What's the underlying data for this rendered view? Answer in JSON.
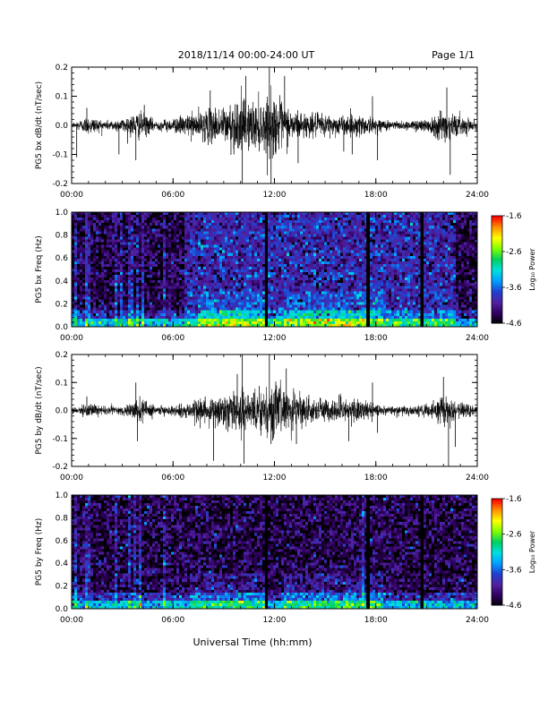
{
  "header": {
    "title": "2018/11/14  00:00-24:00 UT",
    "page": "Page 1/1"
  },
  "footer": {
    "xlabel": "Universal Time (hh:mm)"
  },
  "colorbar": {
    "label": "Log₁₀ Power",
    "ticks": [
      "-1.6",
      "-2.6",
      "-3.6",
      "-4.6"
    ],
    "range": [
      -4.6,
      -1.6
    ],
    "colors": [
      "#000000",
      "#300060",
      "#5020a0",
      "#2040d0",
      "#00a0ff",
      "#00e0e0",
      "#00d060",
      "#80ff00",
      "#ffff00",
      "#ff9000",
      "#ff0000"
    ]
  },
  "chart_data": [
    {
      "type": "line",
      "ylabel": "PG5 bx dB/dt (nT/sec)",
      "xlim": [
        0,
        24
      ],
      "ylim": [
        -0.2,
        0.2
      ],
      "x_ticks": [
        "00:00",
        "06:00",
        "12:00",
        "18:00",
        "24:00"
      ],
      "y_ticks": [
        "0.2",
        "0.1",
        "0.0",
        "-0.1",
        "-0.2"
      ],
      "envelope_hours": [
        0,
        1,
        2,
        3,
        4,
        5,
        6,
        7,
        8,
        9,
        10,
        11,
        12,
        13,
        14,
        15,
        16,
        17,
        18,
        19,
        20,
        21,
        22,
        23,
        24
      ],
      "envelope_amplitude": [
        0.01,
        0.04,
        0.02,
        0.03,
        0.06,
        0.02,
        0.03,
        0.05,
        0.07,
        0.08,
        0.12,
        0.1,
        0.13,
        0.07,
        0.05,
        0.05,
        0.04,
        0.05,
        0.03,
        0.02,
        0.02,
        0.03,
        0.07,
        0.04,
        0.02
      ],
      "spikes": [
        {
          "x": 0.3,
          "y": -0.11
        },
        {
          "x": 0.9,
          "y": 0.06
        },
        {
          "x": 2.8,
          "y": -0.1
        },
        {
          "x": 3.8,
          "y": -0.12
        },
        {
          "x": 4.3,
          "y": 0.07
        },
        {
          "x": 8.2,
          "y": 0.12
        },
        {
          "x": 9.6,
          "y": -0.1
        },
        {
          "x": 10.1,
          "y": -0.2
        },
        {
          "x": 10.3,
          "y": 0.17
        },
        {
          "x": 11.7,
          "y": 0.2
        },
        {
          "x": 11.8,
          "y": -0.21
        },
        {
          "x": 12.6,
          "y": 0.17
        },
        {
          "x": 13.4,
          "y": -0.13
        },
        {
          "x": 16.1,
          "y": -0.09
        },
        {
          "x": 16.6,
          "y": -0.1
        },
        {
          "x": 17.8,
          "y": 0.1
        },
        {
          "x": 18.1,
          "y": -0.12
        },
        {
          "x": 22.2,
          "y": 0.13
        },
        {
          "x": 22.4,
          "y": -0.17
        }
      ]
    },
    {
      "type": "heatmap",
      "ylabel": "PG5 bx Freq (Hz)",
      "xlim": [
        0,
        24
      ],
      "ylim": [
        0,
        1
      ],
      "x_ticks": [
        "00:00",
        "06:00",
        "12:00",
        "18:00",
        "24:00"
      ],
      "y_ticks": [
        "1.0",
        "0.8",
        "0.6",
        "0.4",
        "0.2",
        "0.0"
      ],
      "z_units": "Log₁₀ Power",
      "zlim": [
        -4.6,
        -1.6
      ],
      "quiet_background_hours": [
        [
          0,
          6.7
        ],
        [
          22.7,
          24
        ]
      ],
      "bright_background_hours": [
        [
          6.7,
          22.7
        ]
      ],
      "data_gaps_hours": [
        11.5,
        17.5,
        20.7
      ],
      "vertical_bright_streaks_hours": [
        0.3,
        0.9,
        1.1,
        2.6,
        2.9,
        3.4,
        3.6,
        3.9,
        4.2,
        5.5
      ],
      "low_frequency_enhancement_hours": [
        [
          7.5,
          11.5
        ],
        [
          12.5,
          18.5
        ]
      ]
    },
    {
      "type": "line",
      "ylabel": "PG5 by dB/dt (nT/sec)",
      "xlim": [
        0,
        24
      ],
      "ylim": [
        -0.2,
        0.2
      ],
      "x_ticks": [
        "00:00",
        "06:00",
        "12:00",
        "18:00",
        "24:00"
      ],
      "y_ticks": [
        "0.2",
        "0.1",
        "0.0",
        "-0.1",
        "-0.2"
      ],
      "envelope_hours": [
        0,
        1,
        2,
        3,
        4,
        5,
        6,
        7,
        8,
        9,
        10,
        11,
        12,
        13,
        14,
        15,
        16,
        17,
        18,
        19,
        20,
        21,
        22,
        23,
        24
      ],
      "envelope_amplitude": [
        0.01,
        0.03,
        0.02,
        0.02,
        0.05,
        0.02,
        0.02,
        0.04,
        0.06,
        0.08,
        0.1,
        0.09,
        0.12,
        0.08,
        0.05,
        0.05,
        0.05,
        0.05,
        0.03,
        0.02,
        0.02,
        0.03,
        0.07,
        0.04,
        0.02
      ],
      "spikes": [
        {
          "x": 0.9,
          "y": 0.05
        },
        {
          "x": 3.8,
          "y": 0.1
        },
        {
          "x": 3.9,
          "y": -0.11
        },
        {
          "x": 7.9,
          "y": 0.05
        },
        {
          "x": 8.4,
          "y": -0.18
        },
        {
          "x": 9.8,
          "y": 0.13
        },
        {
          "x": 10.1,
          "y": 0.2
        },
        {
          "x": 10.2,
          "y": -0.19
        },
        {
          "x": 11.7,
          "y": 0.2
        },
        {
          "x": 11.8,
          "y": -0.12
        },
        {
          "x": 12.7,
          "y": 0.15
        },
        {
          "x": 13.3,
          "y": -0.12
        },
        {
          "x": 15.9,
          "y": 0.06
        },
        {
          "x": 16.4,
          "y": -0.11
        },
        {
          "x": 17.8,
          "y": 0.1
        },
        {
          "x": 18.1,
          "y": -0.08
        },
        {
          "x": 22.0,
          "y": 0.12
        },
        {
          "x": 22.3,
          "y": -0.2
        },
        {
          "x": 22.7,
          "y": -0.13
        }
      ]
    },
    {
      "type": "heatmap",
      "ylabel": "PG5 by Freq (Hz)",
      "xlim": [
        0,
        24
      ],
      "ylim": [
        0,
        1
      ],
      "x_ticks": [
        "00:00",
        "06:00",
        "12:00",
        "18:00",
        "24:00"
      ],
      "y_ticks": [
        "1.0",
        "0.8",
        "0.6",
        "0.4",
        "0.2",
        "0.0"
      ],
      "z_units": "Log₁₀ Power",
      "zlim": [
        -4.6,
        -1.6
      ],
      "quiet_background_hours": [
        [
          0,
          24
        ]
      ],
      "bright_background_hours": [],
      "data_gaps_hours": [
        11.5,
        17.5,
        20.7
      ],
      "vertical_bright_streaks_hours": [
        0.3,
        0.9,
        1.1,
        2.6,
        3.4,
        3.7,
        4.0,
        5.5,
        17.3
      ],
      "low_frequency_enhancement_hours": [
        [
          7.0,
          11.5
        ],
        [
          12.5,
          18.5
        ]
      ]
    }
  ]
}
